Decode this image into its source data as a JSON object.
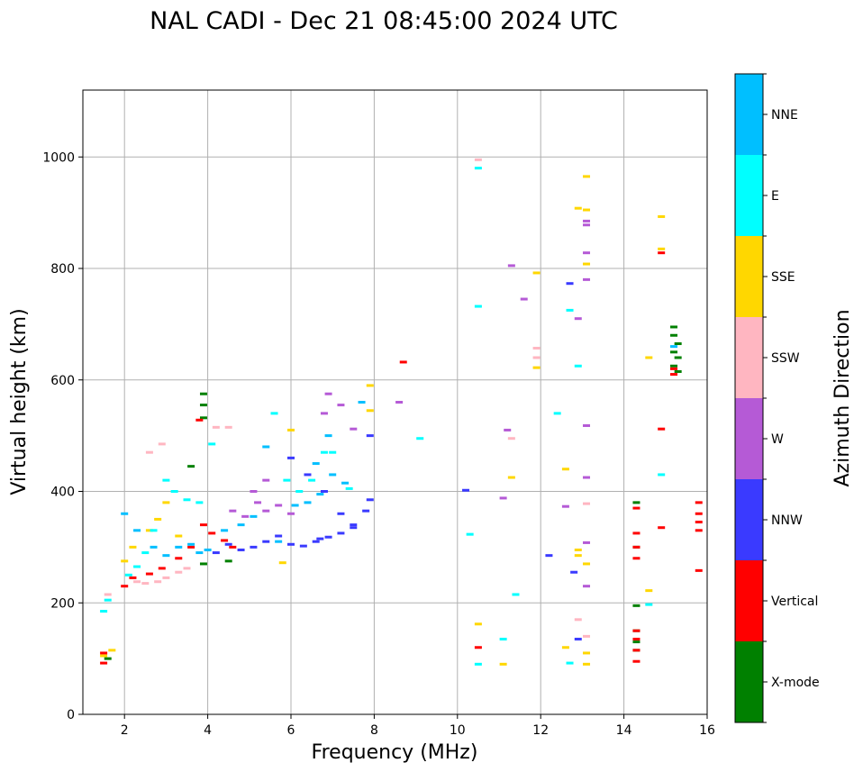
{
  "chart_data": {
    "type": "scatter",
    "title": "NAL CADI - Dec 21 08:45:00 2024 UTC",
    "xlabel": "Frequency (MHz)",
    "ylabel": "Virtual height (km)",
    "xlim": [
      1,
      16
    ],
    "ylim": [
      0,
      1120
    ],
    "xticks": [
      2,
      4,
      6,
      8,
      10,
      12,
      14,
      16
    ],
    "yticks": [
      0,
      200,
      400,
      600,
      800,
      1000
    ],
    "grid": true,
    "colorbar": {
      "label": "Azimuth Direction",
      "placement": "right",
      "categories": [
        {
          "name": "X-mode",
          "color": "#008000"
        },
        {
          "name": "Vertical",
          "color": "#ff0000"
        },
        {
          "name": "NNW",
          "color": "#3a3aff"
        },
        {
          "name": "W",
          "color": "#b55ad6"
        },
        {
          "name": "SSW",
          "color": "#ffb6c1"
        },
        {
          "name": "SSE",
          "color": "#ffd700"
        },
        {
          "name": "E",
          "color": "#00ffff"
        },
        {
          "name": "NNE",
          "color": "#00bfff"
        }
      ]
    },
    "series": [
      {
        "name": "X-mode",
        "points": [
          [
            3.9,
            575
          ],
          [
            3.9,
            555
          ],
          [
            3.9,
            532
          ],
          [
            3.6,
            445
          ],
          [
            3.9,
            270
          ],
          [
            4.5,
            275
          ],
          [
            14.3,
            380
          ],
          [
            14.3,
            300
          ],
          [
            14.3,
            195
          ],
          [
            14.3,
            150
          ],
          [
            14.3,
            130
          ],
          [
            14.3,
            115
          ],
          [
            15.2,
            695
          ],
          [
            15.2,
            680
          ],
          [
            15.3,
            665
          ],
          [
            15.2,
            650
          ],
          [
            15.3,
            640
          ],
          [
            15.2,
            625
          ],
          [
            15.3,
            615
          ],
          [
            1.6,
            100
          ]
        ]
      },
      {
        "name": "Vertical",
        "points": [
          [
            1.5,
            110
          ],
          [
            1.5,
            92
          ],
          [
            2.0,
            230
          ],
          [
            2.2,
            245
          ],
          [
            2.6,
            252
          ],
          [
            2.9,
            262
          ],
          [
            3.3,
            280
          ],
          [
            3.6,
            300
          ],
          [
            3.9,
            340
          ],
          [
            4.1,
            325
          ],
          [
            4.4,
            312
          ],
          [
            4.6,
            300
          ],
          [
            3.8,
            528
          ],
          [
            8.7,
            632
          ],
          [
            14.3,
            370
          ],
          [
            14.3,
            325
          ],
          [
            14.3,
            300
          ],
          [
            14.3,
            280
          ],
          [
            14.3,
            150
          ],
          [
            14.3,
            135
          ],
          [
            14.3,
            115
          ],
          [
            14.3,
            95
          ],
          [
            14.9,
            828
          ],
          [
            14.9,
            512
          ],
          [
            14.9,
            335
          ],
          [
            15.2,
            610
          ],
          [
            15.2,
            620
          ],
          [
            15.8,
            380
          ],
          [
            15.8,
            360
          ],
          [
            15.8,
            345
          ],
          [
            15.8,
            330
          ],
          [
            15.8,
            258
          ],
          [
            10.5,
            120
          ]
        ]
      },
      {
        "name": "NNW",
        "points": [
          [
            4.2,
            290
          ],
          [
            4.5,
            305
          ],
          [
            4.8,
            295
          ],
          [
            5.1,
            300
          ],
          [
            5.4,
            310
          ],
          [
            5.7,
            320
          ],
          [
            6.0,
            305
          ],
          [
            6.3,
            302
          ],
          [
            6.6,
            310
          ],
          [
            6.9,
            318
          ],
          [
            7.2,
            325
          ],
          [
            7.5,
            340
          ],
          [
            7.8,
            365
          ],
          [
            7.9,
            385
          ],
          [
            7.9,
            500
          ],
          [
            6.0,
            460
          ],
          [
            6.4,
            430
          ],
          [
            6.8,
            400
          ],
          [
            7.2,
            360
          ],
          [
            7.5,
            335
          ],
          [
            10.2,
            402
          ],
          [
            12.2,
            285
          ],
          [
            12.7,
            773
          ],
          [
            12.8,
            255
          ],
          [
            12.9,
            135
          ],
          [
            6.7,
            315
          ]
        ]
      },
      {
        "name": "W",
        "points": [
          [
            4.6,
            365
          ],
          [
            4.9,
            355
          ],
          [
            5.2,
            380
          ],
          [
            5.4,
            365
          ],
          [
            5.7,
            375
          ],
          [
            6.0,
            360
          ],
          [
            5.1,
            400
          ],
          [
            5.4,
            420
          ],
          [
            6.8,
            540
          ],
          [
            6.9,
            575
          ],
          [
            7.2,
            555
          ],
          [
            7.5,
            512
          ],
          [
            8.6,
            560
          ],
          [
            11.1,
            388
          ],
          [
            11.2,
            510
          ],
          [
            11.3,
            805
          ],
          [
            11.6,
            745
          ],
          [
            12.9,
            710
          ],
          [
            13.1,
            885
          ],
          [
            13.1,
            878
          ],
          [
            13.1,
            828
          ],
          [
            13.1,
            780
          ],
          [
            13.1,
            518
          ],
          [
            13.1,
            425
          ],
          [
            13.1,
            230
          ],
          [
            12.6,
            373
          ],
          [
            13.1,
            308
          ]
        ]
      },
      {
        "name": "SSW",
        "points": [
          [
            1.6,
            215
          ],
          [
            2.3,
            238
          ],
          [
            2.5,
            235
          ],
          [
            2.8,
            238
          ],
          [
            3.0,
            245
          ],
          [
            3.3,
            255
          ],
          [
            3.5,
            262
          ],
          [
            2.6,
            470
          ],
          [
            2.9,
            485
          ],
          [
            4.2,
            515
          ],
          [
            4.5,
            515
          ],
          [
            10.5,
            995
          ],
          [
            11.3,
            495
          ],
          [
            11.9,
            657
          ],
          [
            11.9,
            640
          ],
          [
            13.1,
            378
          ],
          [
            12.9,
            170
          ],
          [
            13.1,
            140
          ]
        ]
      },
      {
        "name": "SSE",
        "points": [
          [
            1.5,
            105
          ],
          [
            1.7,
            115
          ],
          [
            2.0,
            275
          ],
          [
            2.2,
            300
          ],
          [
            2.6,
            330
          ],
          [
            2.8,
            350
          ],
          [
            3.0,
            380
          ],
          [
            3.3,
            320
          ],
          [
            7.9,
            590
          ],
          [
            7.9,
            545
          ],
          [
            6.0,
            510
          ],
          [
            5.8,
            272
          ],
          [
            10.5,
            162
          ],
          [
            11.1,
            90
          ],
          [
            11.3,
            425
          ],
          [
            11.9,
            792
          ],
          [
            11.9,
            622
          ],
          [
            12.6,
            440
          ],
          [
            12.6,
            120
          ],
          [
            12.9,
            908
          ],
          [
            12.9,
            295
          ],
          [
            12.9,
            285
          ],
          [
            13.1,
            965
          ],
          [
            13.1,
            905
          ],
          [
            13.1,
            808
          ],
          [
            13.1,
            270
          ],
          [
            13.1,
            110
          ],
          [
            13.1,
            90
          ],
          [
            14.6,
            640
          ],
          [
            14.6,
            222
          ],
          [
            14.9,
            893
          ],
          [
            14.9,
            835
          ]
        ]
      },
      {
        "name": "E",
        "points": [
          [
            1.5,
            185
          ],
          [
            1.6,
            205
          ],
          [
            2.1,
            250
          ],
          [
            2.3,
            265
          ],
          [
            2.5,
            290
          ],
          [
            2.7,
            330
          ],
          [
            3.0,
            420
          ],
          [
            3.2,
            400
          ],
          [
            3.5,
            385
          ],
          [
            3.8,
            380
          ],
          [
            4.1,
            485
          ],
          [
            5.6,
            540
          ],
          [
            5.9,
            420
          ],
          [
            6.2,
            400
          ],
          [
            6.5,
            420
          ],
          [
            6.8,
            470
          ],
          [
            7.0,
            470
          ],
          [
            7.4,
            405
          ],
          [
            9.1,
            495
          ],
          [
            10.3,
            323
          ],
          [
            10.5,
            980
          ],
          [
            10.5,
            732
          ],
          [
            10.5,
            90
          ],
          [
            11.1,
            135
          ],
          [
            11.4,
            215
          ],
          [
            12.4,
            540
          ],
          [
            12.7,
            725
          ],
          [
            12.7,
            92
          ],
          [
            12.9,
            625
          ],
          [
            14.9,
            430
          ],
          [
            14.6,
            197
          ]
        ]
      },
      {
        "name": "NNE",
        "points": [
          [
            2.0,
            360
          ],
          [
            2.3,
            330
          ],
          [
            2.7,
            300
          ],
          [
            3.0,
            285
          ],
          [
            3.3,
            300
          ],
          [
            3.6,
            305
          ],
          [
            3.8,
            290
          ],
          [
            4.0,
            295
          ],
          [
            4.4,
            330
          ],
          [
            4.8,
            340
          ],
          [
            5.1,
            355
          ],
          [
            5.4,
            480
          ],
          [
            5.7,
            310
          ],
          [
            6.1,
            375
          ],
          [
            6.4,
            380
          ],
          [
            6.7,
            395
          ],
          [
            7.0,
            430
          ],
          [
            7.3,
            415
          ],
          [
            6.6,
            450
          ],
          [
            6.9,
            500
          ],
          [
            7.7,
            560
          ],
          [
            15.2,
            660
          ]
        ]
      }
    ]
  }
}
